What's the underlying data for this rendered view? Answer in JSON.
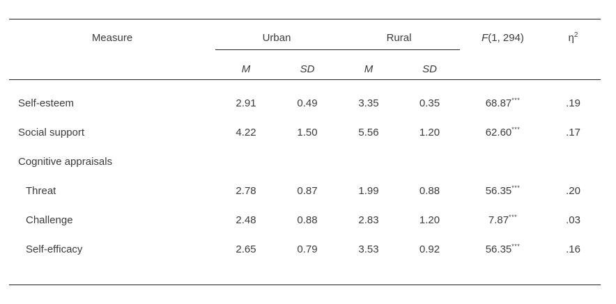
{
  "table": {
    "colors": {
      "text": "#3b3b3b",
      "rule": "#222222",
      "background": "#ffffff"
    },
    "columns": {
      "measure": "Measure",
      "urban": "Urban",
      "rural": "Rural",
      "f_italic": "F",
      "f_rest": "(1, 294)",
      "eta_base": "η",
      "eta_sup": "2",
      "urban_m": "M",
      "urban_sd": "SD",
      "rural_m": "M",
      "rural_sd": "SD"
    },
    "rows": [
      {
        "label": "Self-esteem",
        "urban_m": "2.91",
        "urban_sd": "0.49",
        "rural_m": "3.35",
        "rural_sd": "0.35",
        "f": "68.87",
        "f_stars": "***",
        "eta": ".19"
      },
      {
        "label": "Social support",
        "urban_m": "4.22",
        "urban_sd": "1.50",
        "rural_m": "5.56",
        "rural_sd": "1.20",
        "f": "62.60",
        "f_stars": "***",
        "eta": ".17"
      },
      {
        "label": "Cognitive appraisals",
        "urban_m": "",
        "urban_sd": "",
        "rural_m": "",
        "rural_sd": "",
        "f": "",
        "f_stars": "",
        "eta": ""
      },
      {
        "label": "Threat",
        "urban_m": "2.78",
        "urban_sd": "0.87",
        "rural_m": "1.99",
        "rural_sd": "0.88",
        "f": "56.35",
        "f_stars": "***",
        "eta": ".20"
      },
      {
        "label": "Challenge",
        "urban_m": "2.48",
        "urban_sd": "0.88",
        "rural_m": "2.83",
        "rural_sd": "1.20",
        "f": "7.87",
        "f_stars": "***",
        "eta": ".03"
      },
      {
        "label": "Self-efficacy",
        "urban_m": "2.65",
        "urban_sd": "0.79",
        "rural_m": "3.53",
        "rural_sd": "0.92",
        "f": "56.35",
        "f_stars": "***",
        "eta": ".16"
      }
    ]
  },
  "chart_data": {
    "type": "table",
    "title": "",
    "columns": [
      "Measure",
      "Urban M",
      "Urban SD",
      "Rural M",
      "Rural SD",
      "F(1, 294)",
      "eta-squared"
    ],
    "rows": [
      [
        "Self-esteem",
        2.91,
        0.49,
        3.35,
        0.35,
        "68.87***",
        0.19
      ],
      [
        "Social support",
        4.22,
        1.5,
        5.56,
        1.2,
        "62.60***",
        0.17
      ],
      [
        "Cognitive appraisals",
        null,
        null,
        null,
        null,
        null,
        null
      ],
      [
        "Threat",
        2.78,
        0.87,
        1.99,
        0.88,
        "56.35***",
        0.2
      ],
      [
        "Challenge",
        2.48,
        0.88,
        2.83,
        1.2,
        "7.87***",
        0.03
      ],
      [
        "Self-efficacy",
        2.65,
        0.79,
        3.53,
        0.92,
        "56.35***",
        0.16
      ]
    ]
  }
}
